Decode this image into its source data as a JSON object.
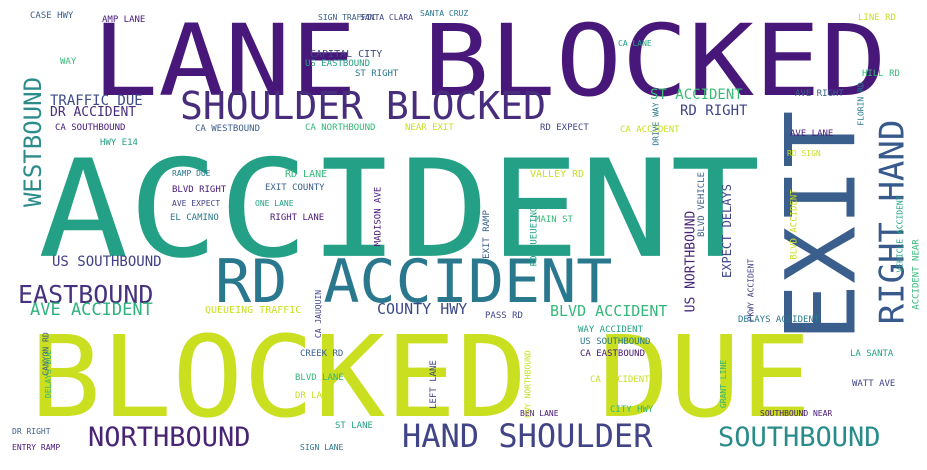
{
  "colors": {
    "background": "#ffffff",
    "palette": [
      "#47187a",
      "#23a085",
      "#c9df20",
      "#3b5f8c",
      "#2a788e",
      "#414487",
      "#35b779"
    ]
  },
  "words": {
    "lane_blocked": "LANE BLOCKED",
    "accident": "ACCIDENT",
    "blocked_due": "BLOCKED DUE",
    "exit": "EXIT",
    "shoulder_blocked": "SHOULDER BLOCKED",
    "rd_accident": "RD ACCIDENT",
    "right_hand": "RIGHT HAND",
    "hand_shoulder": "HAND SHOULDER",
    "northbound": "NORTHBOUND",
    "southbound": "SOUTHBOUND",
    "eastbound": "EASTBOUND",
    "westbound": "WESTBOUND",
    "ave_accident": "AVE ACCIDENT",
    "us_southbound": "US SOUTHBOUND",
    "county_hwy": "COUNTY HWY",
    "blvd_accident": "BLVD ACCIDENT",
    "st_accident": "ST ACCIDENT",
    "rd_right": "RD RIGHT",
    "traffic_due": "TRAFFIC DUE",
    "dr_accident": "DR ACCIDENT",
    "us_northbound": "US NORTHBOUND",
    "expect_delays": "EXPECT DELAYS"
  },
  "small_words": [
    "CA SOUTHBOUND",
    "CA WESTBOUND",
    "CA NORTHBOUND",
    "NEAR EXIT",
    "RD EXPECT",
    "HWY E14",
    "RAMP DUE",
    "BLVD RIGHT",
    "EXIT COUNTY",
    "RD LANE",
    "VALLEY RD",
    "AVE EXPECT",
    "ONE LANE",
    "EL CAMINO",
    "RIGHT LANE",
    "EXIT RAMP",
    "MAIN ST",
    "QUEUEING TRAFFIC",
    "PASS RD",
    "WAY ACCIDENT",
    "US SOUTHBOUND",
    "CA EASTBOUND",
    "CREEK RD",
    "BLVD LANE",
    "DR LANE",
    "LEFT LANE",
    "ST LANE",
    "SIGN LANE",
    "ENTRY RAMP",
    "DR RIGHT",
    "CITY HWY",
    "CA ACCIDENT",
    "WATT AVE",
    "LA SANTA",
    "DELAYS ACCIDENT",
    "AVE LANE",
    "AVE RIGHT",
    "HILL RD",
    "LINE RD",
    "CAPITAL CITY",
    "US EASTBOUND",
    "ST RIGHT",
    "AMP LANE",
    "SIGN TRAFFIC",
    "WAY",
    "CA ACCIDENT",
    "PKWY ACCIDENT",
    "VEHICLE ACCIDENT",
    "FLORIN RD",
    "MADISON AVE",
    "BLVD VEHICLE",
    "ACCIDENT NEAR",
    "BLVD ACCIDENT",
    "CA JAUQUIN",
    "RD QUEUEING",
    "SANTA CRUZ",
    "BEN LANE",
    "CANYON RD",
    "DELAYS DUE",
    "HWY NORTHBOUND",
    "SANTA CLARA",
    "CA LANE",
    "DRIVE WAY",
    "SOUTHBOUND NEAR",
    "CASE HWY",
    "GRANT LINE",
    "RD SIGN"
  ]
}
